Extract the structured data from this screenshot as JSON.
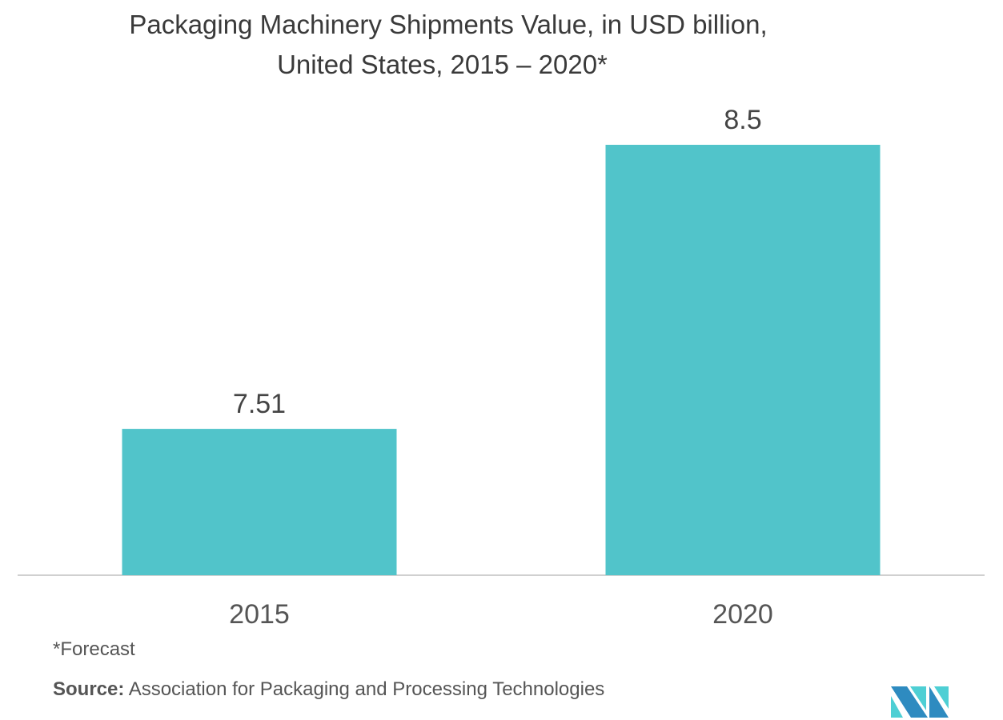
{
  "chart_data": {
    "type": "bar",
    "title": "Packaging Machinery Shipments Value,  in USD billion,",
    "subtitle": "United States, 2015 – 2020*",
    "categories": [
      "2015",
      "2020"
    ],
    "values": [
      7.51,
      8.5
    ],
    "data_labels": [
      "7.51",
      "8.5"
    ],
    "xlabel": "",
    "ylabel": "",
    "ylim": [
      7,
      8.5
    ],
    "grid": false,
    "bar_color": "#51c4ca"
  },
  "footnote": "*Forecast",
  "source_label": "Source:",
  "source_text": " Association for Packaging and Processing Technologies",
  "logo": {
    "colors": [
      "#2e8bc0",
      "#4ecfd4"
    ]
  }
}
